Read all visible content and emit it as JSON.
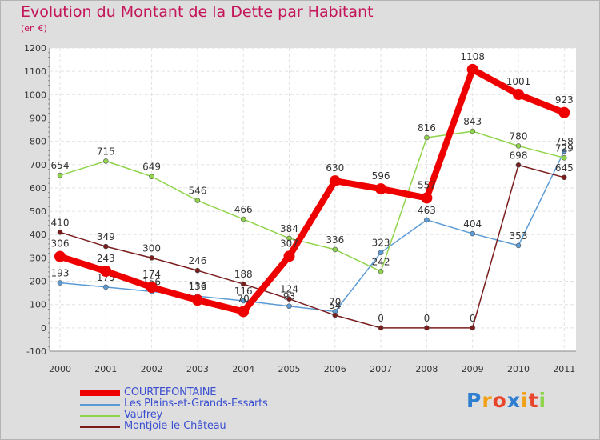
{
  "title": "Evolution du Montant de la Dette par Habitant",
  "subtitle": "(en €)",
  "chart_data": {
    "type": "line",
    "categories": [
      "2000",
      "2001",
      "2002",
      "2003",
      "2004",
      "2005",
      "2006",
      "2007",
      "2008",
      "2009",
      "2010",
      "2011"
    ],
    "ylim": [
      -100,
      1200
    ],
    "yticks": [
      "-100",
      "0",
      "100",
      "200",
      "300",
      "400",
      "500",
      "600",
      "700",
      "800",
      "900",
      "1000",
      "1100",
      "1200"
    ],
    "grid": true,
    "legend_position": "bottom-left",
    "series": [
      {
        "name": "COURTEFONTAINE",
        "color": "#ee0000",
        "values": [
          306,
          243,
          174,
          119,
          70,
          307,
          630,
          596,
          557,
          1108,
          1001,
          923
        ],
        "labels": [
          "306",
          "243",
          "174",
          "119",
          "70",
          "307",
          "630",
          "596",
          "557",
          "1108",
          "1001",
          "923"
        ]
      },
      {
        "name": "Les Plains-et-Grands-Essarts",
        "color": "#5b9bd5",
        "values": [
          193,
          175,
          156,
          136,
          116,
          93,
          70,
          323,
          463,
          404,
          353,
          758
        ],
        "labels": [
          "193",
          "175",
          "156",
          "136",
          "116",
          "93",
          "70",
          "323",
          "463",
          "404",
          "353",
          "758"
        ]
      },
      {
        "name": "Vaufrey",
        "color": "#8fd44a",
        "values": [
          654,
          715,
          649,
          546,
          466,
          384,
          336,
          242,
          816,
          843,
          780,
          729
        ],
        "labels": [
          "654",
          "715",
          "649",
          "546",
          "466",
          "384",
          "336",
          "242",
          "816",
          "843",
          "780",
          "729"
        ]
      },
      {
        "name": "Montjoie-le-Château",
        "color": "#7a1c1c",
        "values": [
          410,
          349,
          300,
          246,
          188,
          124,
          54,
          0,
          0,
          0,
          698,
          645
        ],
        "labels": [
          "410",
          "349",
          "300",
          "246",
          "188",
          "124",
          "54",
          "0",
          "0",
          "0",
          "698",
          "645"
        ]
      }
    ]
  },
  "logo": {
    "text": [
      "P",
      "r",
      "o",
      "x",
      "i",
      "t",
      "i"
    ],
    "colors": [
      "#2e7fd1",
      "#f2a014",
      "#e8452c",
      "#2e7fd1",
      "#f2a014",
      "#e8452c",
      "#8fd44a"
    ]
  }
}
